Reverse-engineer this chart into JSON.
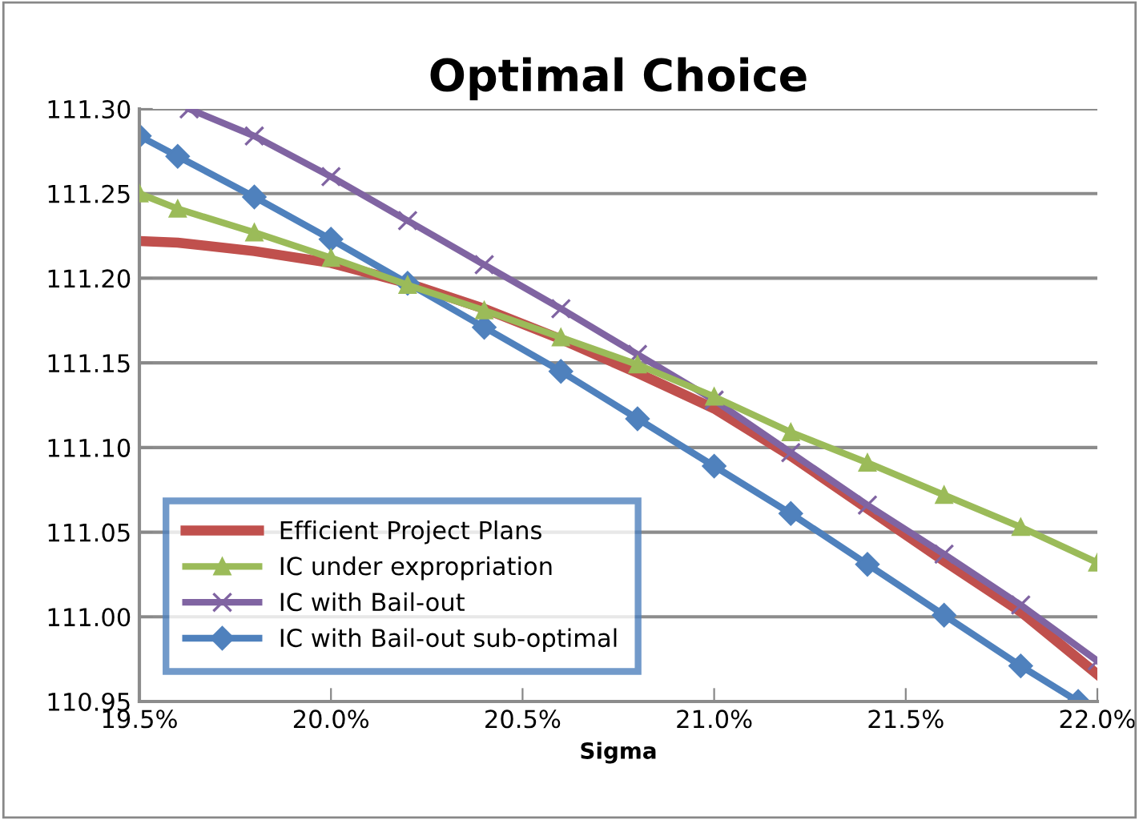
{
  "chart_data": {
    "type": "line",
    "title": "Optimal Choice",
    "xlabel": "Sigma",
    "xlim": [
      19.5,
      22.0
    ],
    "xticks": [
      {
        "value": 19.5,
        "label": "19.5%"
      },
      {
        "value": 20.0,
        "label": "20.0%"
      },
      {
        "value": 20.5,
        "label": "20.5%"
      },
      {
        "value": 21.0,
        "label": "21.0%"
      },
      {
        "value": 21.5,
        "label": "21.5%"
      },
      {
        "value": 22.0,
        "label": "22.0%"
      }
    ],
    "ylim": [
      110.95,
      111.3
    ],
    "yticks": [
      {
        "value": 110.95,
        "label": "110.95"
      },
      {
        "value": 111.0,
        "label": "111.00"
      },
      {
        "value": 111.05,
        "label": "111.05"
      },
      {
        "value": 111.1,
        "label": "111.10"
      },
      {
        "value": 111.15,
        "label": "111.15"
      },
      {
        "value": 111.2,
        "label": "111.20"
      },
      {
        "value": 111.25,
        "label": "111.25"
      },
      {
        "value": 111.3,
        "label": "111.30"
      }
    ],
    "grid": "y",
    "legend": "bottom left",
    "series": [
      {
        "name": "Efficient Project Plans",
        "color": "#c0504d",
        "marker": "none",
        "x": [
          19.5,
          19.6,
          19.8,
          20.0,
          20.2,
          20.4,
          20.6,
          20.8,
          21.0,
          21.2,
          21.4,
          21.6,
          21.8,
          22.0
        ],
        "values": [
          111.222,
          111.221,
          111.216,
          111.209,
          111.197,
          111.182,
          111.164,
          111.144,
          111.123,
          111.095,
          111.064,
          111.033,
          111.003,
          110.966
        ]
      },
      {
        "name": "IC under expropriation",
        "color": "#9bbb59",
        "marker": "triangle",
        "x": [
          19.5,
          19.6,
          19.8,
          20.0,
          20.2,
          20.4,
          20.6,
          20.8,
          21.0,
          21.2,
          21.4,
          21.6,
          21.8,
          22.0
        ],
        "values": [
          111.25,
          111.241,
          111.227,
          111.212,
          111.196,
          111.181,
          111.165,
          111.149,
          111.13,
          111.109,
          111.091,
          111.072,
          111.053,
          111.032
        ]
      },
      {
        "name": "IC with Bail-out",
        "color": "#8064a2",
        "marker": "cross",
        "x": [
          19.63,
          19.8,
          20.0,
          20.2,
          20.4,
          20.6,
          20.8,
          21.0,
          21.2,
          21.4,
          21.6,
          21.8,
          22.0
        ],
        "values": [
          111.3,
          111.284,
          111.26,
          111.234,
          111.208,
          111.182,
          111.155,
          111.128,
          111.097,
          111.066,
          111.037,
          111.007,
          110.974
        ]
      },
      {
        "name": "IC with Bail-out sub-optimal",
        "color": "#4f81bd",
        "marker": "diamond",
        "x": [
          19.5,
          19.6,
          19.8,
          20.0,
          20.2,
          20.4,
          20.6,
          20.8,
          21.0,
          21.2,
          21.4,
          21.6,
          21.8,
          21.95
        ],
        "values": [
          111.284,
          111.272,
          111.248,
          111.223,
          111.197,
          111.171,
          111.145,
          111.117,
          111.089,
          111.061,
          111.031,
          111.001,
          110.971,
          110.95
        ]
      }
    ]
  }
}
